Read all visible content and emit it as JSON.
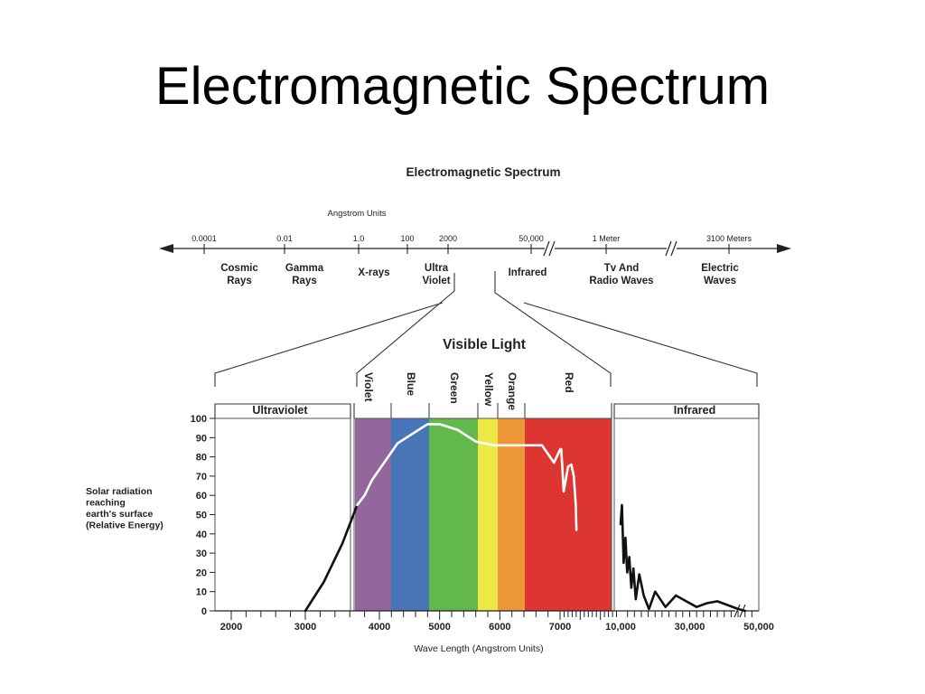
{
  "slide": {
    "title": "Electromagnetic Spectrum"
  },
  "diagram": {
    "title": "Electromagnetic Spectrum",
    "scale_label": "Angstrom Units",
    "ticks": [
      "0.0001",
      "0.01",
      "1.0",
      "100",
      "2000",
      "50,000",
      "1 Meter",
      "3100 Meters"
    ],
    "bands": [
      {
        "line1": "Cosmic",
        "line2": "Rays"
      },
      {
        "line1": "Gamma",
        "line2": "Rays"
      },
      {
        "line1": "X-rays",
        "line2": ""
      },
      {
        "line1": "Ultra",
        "line2": "Violet"
      },
      {
        "line1": "Infrared",
        "line2": ""
      },
      {
        "line1": "Tv And",
        "line2": "Radio Waves"
      },
      {
        "line1": "Electric",
        "line2": "Waves"
      }
    ],
    "visible_light_label": "Visible Light",
    "colors": [
      {
        "name": "Violet",
        "color": "#93679b"
      },
      {
        "name": "Blue",
        "color": "#4874b8"
      },
      {
        "name": "Green",
        "color": "#62b84a"
      },
      {
        "name": "Yellow",
        "color": "#eee844"
      },
      {
        "name": "Orange",
        "color": "#ec9838"
      },
      {
        "name": "Red",
        "color": "#dd3632"
      }
    ],
    "section_labels": {
      "left": "Ultraviolet",
      "right": "Infrared"
    }
  },
  "chart_data": {
    "type": "line",
    "ylabel": "Solar radiation reaching earth's surface (Relative Energy)",
    "ylabel_lines": [
      "Solar radiation",
      "reaching",
      "earth's surface",
      "(Relative Energy)"
    ],
    "xlabel": "Wave Length (Angstrom Units)",
    "ylim": [
      0,
      100
    ],
    "yticks": [
      "100",
      "90",
      "80",
      "70",
      "60",
      "50",
      "40",
      "30",
      "20",
      "10",
      "0"
    ],
    "xticks": [
      "2000",
      "3000",
      "4000",
      "5000",
      "6000",
      "7000",
      "10,000",
      "30,000",
      "50,000"
    ],
    "series": [
      {
        "color": "#111111",
        "x": [
          3000,
          3250,
          3500,
          3700
        ],
        "y": [
          0,
          15,
          35,
          55
        ]
      },
      {
        "color": "#ffffff",
        "x": [
          3700,
          3800,
          3900,
          4100,
          4300,
          4600,
          4800,
          5000,
          5300,
          5600,
          5900,
          6300,
          6700,
          6900,
          7010,
          7060,
          7120,
          7180,
          7280,
          7400,
          7560,
          7680,
          7780,
          7810
        ],
        "y": [
          55,
          60,
          68,
          78,
          87,
          93,
          97,
          97,
          94,
          88,
          86,
          86,
          86,
          77,
          84,
          84,
          73,
          62,
          68,
          75,
          76,
          70,
          55,
          42
        ]
      },
      {
        "color": "#111111",
        "x": [
          10000,
          10400,
          10900,
          11400,
          11900,
          12500,
          13100,
          13700,
          14400,
          15400,
          16700,
          18200,
          20000,
          23000,
          26000,
          29000,
          32000,
          35000,
          38000,
          41000,
          44000,
          46000
        ],
        "y": [
          45,
          55,
          25,
          38,
          20,
          28,
          12,
          22,
          6,
          19,
          8,
          1,
          10,
          2,
          8,
          5,
          2,
          4,
          5,
          3,
          1,
          0
        ]
      }
    ]
  }
}
